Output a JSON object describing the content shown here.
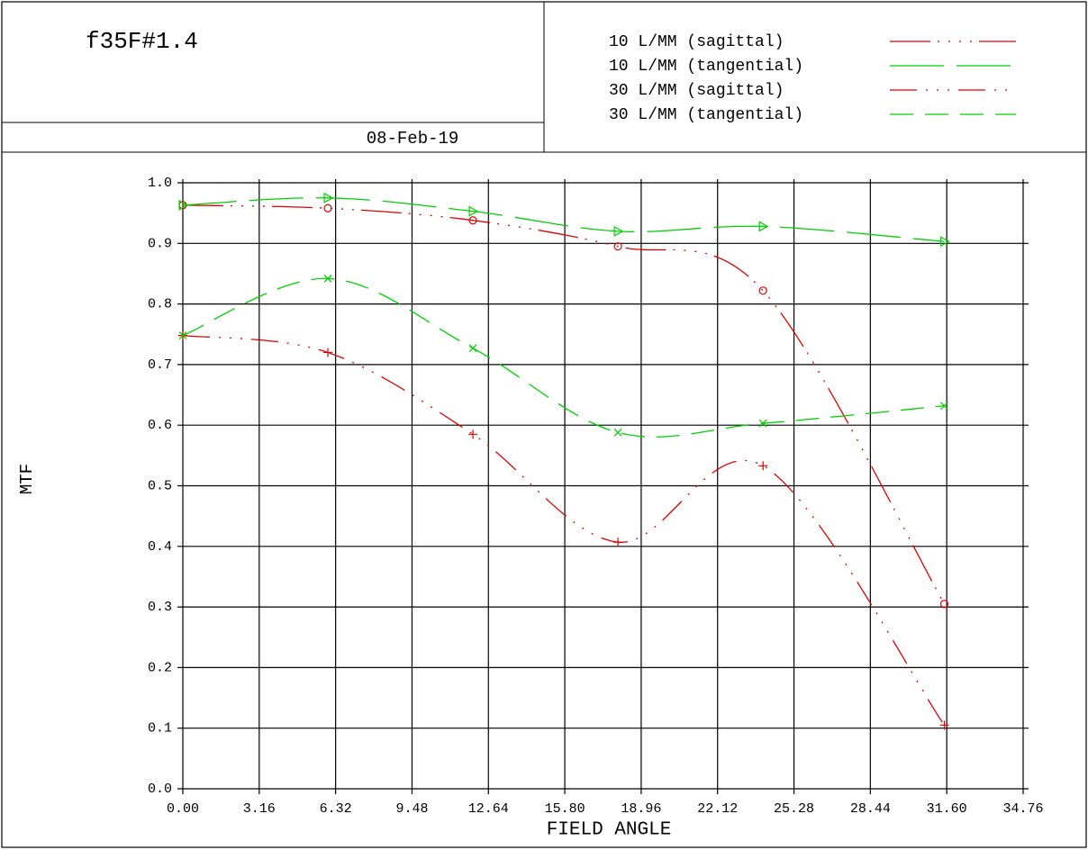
{
  "chart_data": {
    "type": "line",
    "title": "f35F#1.4",
    "date": "08-Feb-19",
    "x_label": "FIELD ANGLE",
    "y_label": "MTF",
    "x": [
      0,
      6,
      12,
      18,
      24,
      31.5
    ],
    "series": [
      {
        "name": "10 L/MM (sagittal)",
        "color": "#e00000",
        "values": [
          0.963,
          0.958,
          0.938,
          0.895,
          0.822,
          0.305
        ]
      },
      {
        "name": "10 L/MM (tangential)",
        "color": "#00d000",
        "values": [
          0.963,
          0.975,
          0.953,
          0.92,
          0.928,
          0.903
        ]
      },
      {
        "name": "30 L/MM (sagittal)",
        "color": "#e00000",
        "values": [
          0.748,
          0.72,
          0.585,
          0.407,
          0.533,
          0.105
        ]
      },
      {
        "name": "30 L/MM (tangential)",
        "color": "#00d000",
        "values": [
          0.748,
          0.842,
          0.727,
          0.588,
          0.603,
          0.632
        ]
      }
    ],
    "xlim": [
      0,
      34.76
    ],
    "xticks": [
      {
        "value": 0,
        "label": "0.00"
      },
      3.16,
      6.32,
      9.48,
      12.64,
      {
        "value": 15.8,
        "label": "15.80"
      },
      18.96,
      22.12,
      25.28,
      28.44,
      {
        "value": 31.6,
        "label": "31.60"
      },
      34.76
    ],
    "ylim": [
      0,
      1
    ],
    "yticks": [
      {
        "value": 0,
        "label": "0.0"
      },
      0.1,
      0.2,
      0.3,
      0.4,
      0.5,
      0.6,
      0.7,
      0.8,
      0.9,
      {
        "value": 1,
        "label": "1.0"
      }
    ],
    "grid": true
  }
}
